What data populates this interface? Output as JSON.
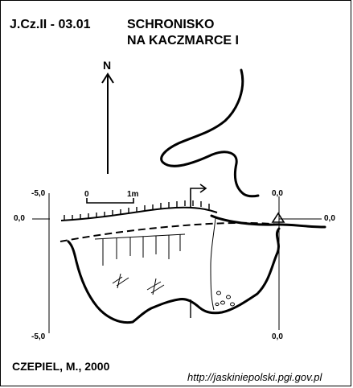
{
  "title": {
    "code": "J.Cz.II - 03.01",
    "line1": "SCHRONISKO",
    "line2": "NA KACZMARCE I"
  },
  "author": "CZEPIEL, M., 2000",
  "url": "http://jaskiniepolski.pgi.gov.pl",
  "north_label": "N",
  "scale": {
    "start": "0",
    "end": "1m"
  },
  "section_labels": {
    "left_top": "-5,0",
    "left_mid": "0,0",
    "left_bottom": "-5,0",
    "right_top": "0,0",
    "right_mid": "0,0",
    "right_bottom": "0,0"
  },
  "colors": {
    "ink": "#000000",
    "background": "#ffffff"
  }
}
